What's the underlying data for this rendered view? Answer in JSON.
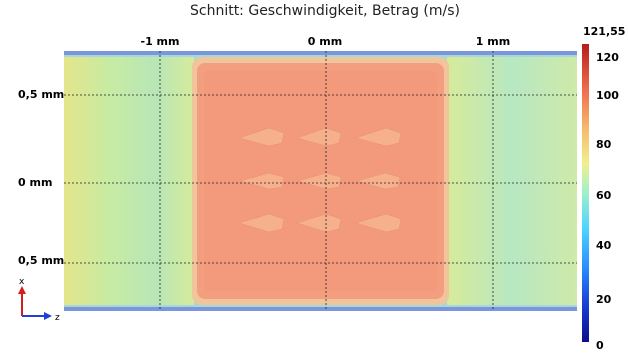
{
  "title": "Schnitt: Geschwindigkeit, Betrag (m/s)",
  "x_ticks": [
    "-1 mm",
    "0 mm",
    "1 mm"
  ],
  "y_ticks": [
    "0,5 mm",
    "0 mm",
    "0,5 mm"
  ],
  "axis_triad": {
    "vertical": "x",
    "horizontal": "z",
    "vertical_color": "#d21e1e",
    "horizontal_color": "#1f3fd6"
  },
  "colorbar": {
    "max_label": "121,55",
    "ticks": [
      "120",
      "100",
      "80",
      "60",
      "40",
      "20",
      "0"
    ]
  },
  "colors": {
    "edge": "#6f8fd8",
    "outer_region": "#b9e6a6",
    "inner_region": "#f29c7d",
    "inner_border": "#f0c09a"
  }
}
